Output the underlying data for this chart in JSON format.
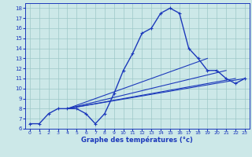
{
  "xlabel": "Graphe des températures (°c)",
  "x_ticks": [
    0,
    1,
    2,
    3,
    4,
    5,
    6,
    7,
    8,
    9,
    10,
    11,
    12,
    13,
    14,
    15,
    16,
    17,
    18,
    19,
    20,
    21,
    22,
    23
  ],
  "ylim": [
    6,
    18.5
  ],
  "xlim": [
    -0.5,
    23.5
  ],
  "yticks": [
    6,
    7,
    8,
    9,
    10,
    11,
    12,
    13,
    14,
    15,
    16,
    17,
    18
  ],
  "main_line_x": [
    0,
    1,
    2,
    3,
    4,
    5,
    6,
    7,
    8,
    9,
    10,
    11,
    12,
    13,
    14,
    15,
    16,
    17,
    18,
    19,
    20,
    21,
    22,
    23
  ],
  "main_line_y": [
    6.5,
    6.5,
    7.5,
    8.0,
    8.0,
    8.0,
    7.5,
    6.5,
    7.5,
    9.5,
    11.8,
    13.5,
    15.5,
    16.0,
    17.5,
    18.0,
    17.5,
    14.0,
    13.0,
    11.8,
    11.8,
    11.0,
    10.5,
    11.0
  ],
  "ref_lines": [
    {
      "x": [
        4,
        19
      ],
      "y": [
        8.0,
        13.0
      ]
    },
    {
      "x": [
        4,
        21
      ],
      "y": [
        8.0,
        11.8
      ]
    },
    {
      "x": [
        4,
        22
      ],
      "y": [
        8.0,
        11.0
      ]
    },
    {
      "x": [
        4,
        23
      ],
      "y": [
        8.0,
        11.0
      ]
    }
  ],
  "color": "#1c39bb",
  "bg_color": "#cce8e8",
  "grid_color": "#9ec8c8"
}
